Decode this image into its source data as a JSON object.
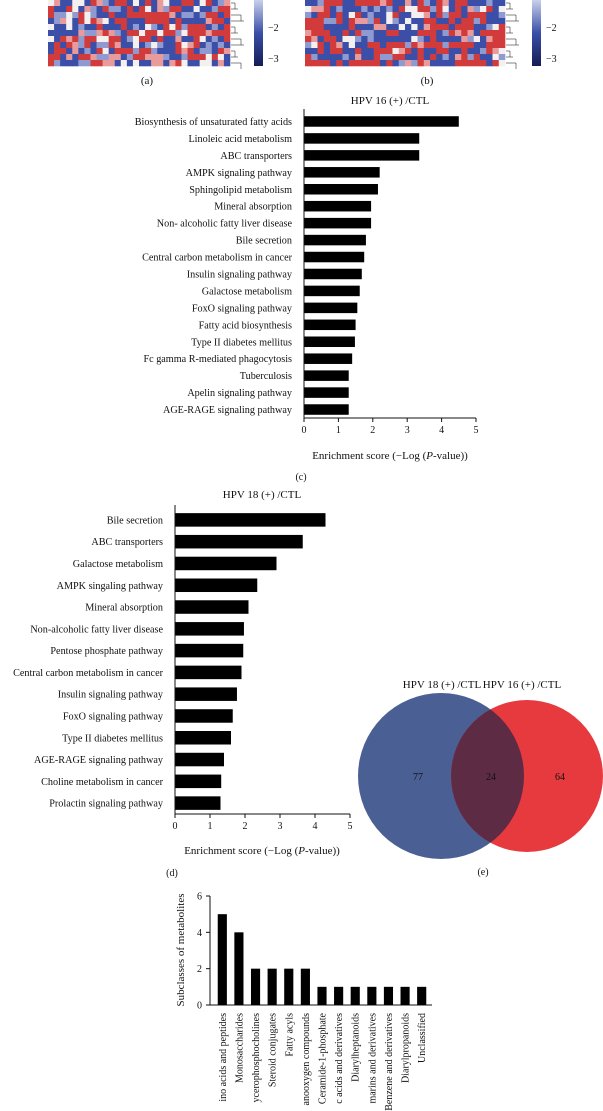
{
  "heatmap_strip": {
    "colorbar_a_ticks": [
      "−2",
      "−3"
    ],
    "colorbar_b_ticks": [
      "−2",
      "−3"
    ],
    "label_a": "(a)",
    "label_b": "(b)",
    "colors": {
      "red": "#d23b3b",
      "blue": "#3b4fa8",
      "white": "#f4f0f0"
    }
  },
  "panel_c": {
    "label": "(c)",
    "chart_data": {
      "type": "bar",
      "orientation": "horizontal",
      "title": "HPV 16 (+) /CTL",
      "xlabel": "Enrichment score (−Log (P-value))",
      "xlim": [
        0,
        5
      ],
      "xticks": [
        "0",
        "1",
        "2",
        "3",
        "4",
        "5"
      ],
      "categories": [
        "Biosynthesis of unsaturated fatty acids",
        "Linoleic acid metabolism",
        "ABC transporters",
        "AMPK signaling pathway",
        "Sphingolipid metabolism",
        "Mineral absorption",
        "Non- alcoholic fatty liver disease",
        "Bile secretion",
        "Central carbon metabolism in cancer",
        "Insulin signaling pathway",
        "Galactose metabolism",
        "FoxO signaling pathway",
        "Fatty acid biosynthesis",
        "Type II diabetes mellitus",
        "Fc gamma R-mediated phagocytosis",
        "Tuberculosis",
        "Apelin signaling pathway",
        "AGE-RAGE signaling pathway"
      ],
      "values": [
        4.5,
        3.35,
        3.35,
        2.2,
        2.15,
        1.95,
        1.95,
        1.8,
        1.75,
        1.68,
        1.62,
        1.55,
        1.5,
        1.48,
        1.4,
        1.3,
        1.3,
        1.3
      ]
    }
  },
  "panel_d": {
    "label": "(d)",
    "chart_data": {
      "type": "bar",
      "orientation": "horizontal",
      "title": "HPV 18 (+) /CTL",
      "xlabel": "Enrichment score (−Log (P-value))",
      "xlim": [
        0,
        5
      ],
      "xticks": [
        "0",
        "1",
        "2",
        "3",
        "4",
        "5"
      ],
      "categories": [
        "Bile secretion",
        "ABC transporters",
        "Galactose metabolism",
        "AMPK singaling pathway",
        "Mineral absorption",
        "Non-alcoholic fatty liver disease",
        "Pentose phosphate pathway",
        "Central carbon metabolism in cancer",
        "Insulin signaling pathway",
        "FoxO signaling pathway",
        "Type II diabetes mellitus",
        "AGE-RAGE signaling pathway",
        "Choline metabolism in cancer",
        "Prolactin signaling pathway"
      ],
      "values": [
        4.3,
        3.65,
        2.9,
        2.35,
        2.1,
        1.97,
        1.95,
        1.9,
        1.77,
        1.65,
        1.6,
        1.4,
        1.32,
        1.3
      ]
    }
  },
  "panel_e": {
    "label": "(e)",
    "set_left_label": "HPV 18 (+) /CTL",
    "set_right_label": "HPV 16 (+) /CTL",
    "left_only": "77",
    "overlap": "24",
    "right_only": "64",
    "colors": {
      "left": "#4a5f94",
      "right": "#e63a3f",
      "overlap": "#5e2b45"
    }
  },
  "panel_f": {
    "chart_data": {
      "type": "bar",
      "ylabel": "Subclasses of metabolites",
      "ylim": [
        0,
        6
      ],
      "yticks": [
        "0",
        "2",
        "4",
        "6"
      ],
      "categories": [
        "ino acids and peptides",
        "Monosaccharides",
        "ycerophosphocholines",
        "Steroid conjugates",
        "Fatty acyls",
        "anooxygen compounds",
        "Ceramide-1-phosphate",
        "c acids and derivatives",
        "Diarylheptanoids",
        "marins and derivatives",
        "Benzene and derivatives",
        "Diarylpropanoids",
        "Unclassified"
      ],
      "values": [
        5,
        4,
        2,
        2,
        2,
        2,
        1,
        1,
        1,
        1,
        1,
        1,
        1
      ]
    }
  }
}
